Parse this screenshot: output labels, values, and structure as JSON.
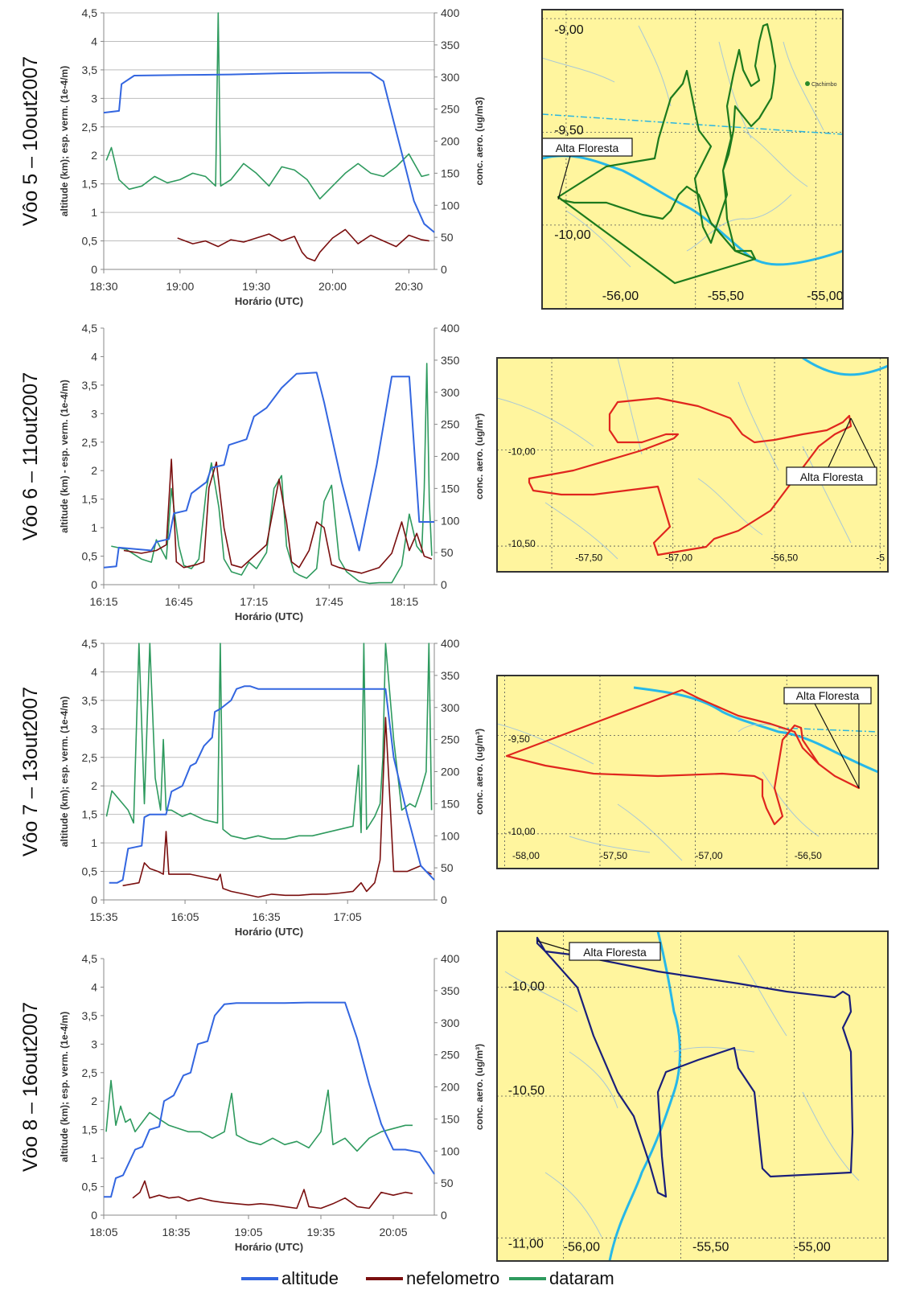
{
  "legend": {
    "items": [
      {
        "label": "altitude",
        "color": "#3366e0"
      },
      {
        "label": "nefelometro",
        "color": "#7a0f0f"
      },
      {
        "label": "dataram",
        "color": "#2e9a5e"
      }
    ]
  },
  "colors": {
    "altitude": "#3366e0",
    "nefelometro": "#7a0f0f",
    "dataram": "#2e9a5e",
    "map_bg": "#fff59e",
    "river": "#27b8e8"
  },
  "chart_data": [
    {
      "type": "line",
      "flight": "Vôo 5 – 10out2007",
      "xlabel": "Horário (UTC)",
      "ylabel_left": "altitude (km); esp. verm. (1e-4/m)",
      "ylabel_right": "conc. aero. (ug/m3)",
      "x_ticks": [
        "18:30",
        "19:00",
        "19:30",
        "20:00",
        "20:30"
      ],
      "x_range_min": [
        1110,
        1240
      ],
      "ylim_left": [
        0,
        4.5
      ],
      "ylim_right": [
        0,
        400
      ],
      "y_ticks_left": [
        "0",
        "0,5",
        "1",
        "1,5",
        "2",
        "2,5",
        "3",
        "3,5",
        "4",
        "4,5"
      ],
      "y_ticks_right": [
        "0",
        "50",
        "100",
        "150",
        "200",
        "250",
        "300",
        "350",
        "400"
      ],
      "grid": true,
      "series": [
        {
          "name": "altitude",
          "axis": "left",
          "x": [
            1110,
            1116,
            1117,
            1122,
            1140,
            1160,
            1180,
            1200,
            1215,
            1220,
            1224,
            1228,
            1232,
            1236,
            1240
          ],
          "y": [
            2.75,
            2.78,
            3.25,
            3.4,
            3.41,
            3.42,
            3.44,
            3.45,
            3.45,
            3.3,
            2.6,
            1.9,
            1.2,
            0.8,
            0.65
          ]
        },
        {
          "name": "nefelometro",
          "axis": "left",
          "x": [
            1139,
            1145,
            1150,
            1155,
            1160,
            1165,
            1170,
            1175,
            1180,
            1185,
            1188,
            1190,
            1193,
            1195,
            1200,
            1205,
            1210,
            1215,
            1220,
            1225,
            1230,
            1235,
            1238
          ],
          "y": [
            0.55,
            0.45,
            0.5,
            0.4,
            0.52,
            0.48,
            0.55,
            0.62,
            0.5,
            0.58,
            0.3,
            0.2,
            0.15,
            0.3,
            0.55,
            0.7,
            0.45,
            0.6,
            0.5,
            0.4,
            0.6,
            0.52,
            0.5
          ]
        },
        {
          "name": "dataram",
          "axis": "right",
          "x": [
            1111,
            1113,
            1116,
            1120,
            1125,
            1130,
            1135,
            1140,
            1145,
            1150,
            1154,
            1155,
            1156,
            1160,
            1165,
            1170,
            1175,
            1180,
            1185,
            1190,
            1195,
            1200,
            1205,
            1210,
            1215,
            1220,
            1225,
            1230,
            1235,
            1238
          ],
          "y": [
            170,
            190,
            140,
            125,
            130,
            145,
            135,
            140,
            150,
            145,
            130,
            400,
            130,
            140,
            165,
            150,
            130,
            160,
            155,
            140,
            110,
            130,
            150,
            165,
            150,
            145,
            160,
            180,
            145,
            148
          ]
        }
      ]
    },
    {
      "type": "line",
      "flight": "Vôo 6 – 11out2007",
      "xlabel": "Horário (UTC)",
      "ylabel_left": "altitude (km) - esp. verm. (1e-4/m)",
      "ylabel_right": "conc. aero. (ug/m³)",
      "x_ticks": [
        "16:15",
        "16:45",
        "17:15",
        "17:45",
        "18:15"
      ],
      "x_range_min": [
        975,
        1107
      ],
      "ylim_left": [
        0,
        4.5
      ],
      "ylim_right": [
        0,
        400
      ],
      "y_ticks_left": [
        "0",
        "0,5",
        "1",
        "1,5",
        "2",
        "2,5",
        "3",
        "3,5",
        "4",
        "4,5"
      ],
      "y_ticks_right": [
        "0",
        "50",
        "100",
        "150",
        "200",
        "250",
        "300",
        "350",
        "400"
      ],
      "grid": false,
      "series": [
        {
          "name": "altitude",
          "axis": "left",
          "x": [
            975,
            980,
            981,
            994,
            996,
            1001,
            1003,
            1008,
            1010,
            1016,
            1018,
            1023,
            1025,
            1032,
            1035,
            1040,
            1046,
            1052,
            1060,
            1063,
            1070,
            1077,
            1084,
            1090,
            1097,
            1101,
            1107
          ],
          "y": [
            0.3,
            0.32,
            0.65,
            0.6,
            0.75,
            0.8,
            1.25,
            1.3,
            1.6,
            1.8,
            2.05,
            2.1,
            2.45,
            2.55,
            2.95,
            3.1,
            3.45,
            3.7,
            3.72,
            3.2,
            1.8,
            0.6,
            2.1,
            3.65,
            3.65,
            1.1,
            1.1
          ]
        },
        {
          "name": "nefelometro",
          "axis": "left",
          "x": [
            983,
            990,
            996,
            1000,
            1002,
            1004,
            1007,
            1012,
            1015,
            1017,
            1020,
            1023,
            1026,
            1030,
            1035,
            1040,
            1045,
            1048,
            1050,
            1053,
            1057,
            1060,
            1063,
            1066,
            1069,
            1073,
            1078,
            1085,
            1090,
            1094,
            1097,
            1100,
            1103,
            1106
          ],
          "y": [
            0.6,
            0.55,
            0.6,
            0.7,
            2.2,
            0.4,
            0.3,
            0.35,
            0.4,
            1.7,
            2.15,
            1.0,
            0.35,
            0.3,
            0.5,
            0.7,
            1.85,
            1.1,
            0.4,
            0.3,
            0.6,
            1.1,
            1.0,
            0.35,
            0.3,
            0.25,
            0.2,
            0.3,
            0.55,
            1.1,
            0.6,
            0.9,
            0.5,
            0.45
          ]
        },
        {
          "name": "dataram",
          "axis": "right",
          "x": [
            978,
            984,
            990,
            994,
            996,
            1000,
            1002,
            1005,
            1007,
            1010,
            1013,
            1016,
            1018,
            1021,
            1023,
            1026,
            1030,
            1033,
            1036,
            1040,
            1043,
            1046,
            1048,
            1051,
            1053,
            1056,
            1060,
            1063,
            1066,
            1069,
            1072,
            1077,
            1081,
            1085,
            1090,
            1094,
            1097,
            1100,
            1102,
            1103,
            1104,
            1105,
            1106
          ],
          "y": [
            60,
            55,
            40,
            35,
            70,
            40,
            150,
            60,
            30,
            25,
            40,
            150,
            190,
            120,
            40,
            20,
            15,
            35,
            25,
            50,
            150,
            170,
            60,
            20,
            15,
            10,
            25,
            130,
            155,
            40,
            20,
            5,
            2,
            3,
            3,
            30,
            110,
            60,
            50,
            150,
            345,
            130,
            45
          ]
        }
      ]
    },
    {
      "type": "line",
      "flight": "Vôo 7 – 13out2007",
      "xlabel": "Horário (UTC)",
      "ylabel_left": "altitude (km); esp. verm. (1e-4/m)",
      "ylabel_right": "conc. aero. (ug/m³)",
      "x_ticks": [
        "15:35",
        "16:05",
        "16:35",
        "17:05"
      ],
      "x_range_min": [
        933,
        1055
      ],
      "ylim_left": [
        0,
        4.5
      ],
      "ylim_right": [
        0,
        400
      ],
      "y_ticks_left": [
        "0",
        "0,5",
        "1",
        "1,5",
        "2",
        "2,5",
        "3",
        "3,5",
        "4",
        "4,5"
      ],
      "y_ticks_right": [
        "0",
        "50",
        "100",
        "150",
        "200",
        "250",
        "300",
        "350",
        "400"
      ],
      "grid": true,
      "series": [
        {
          "name": "altitude",
          "axis": "left",
          "x": [
            935,
            938,
            940,
            942,
            947,
            948,
            950,
            956,
            958,
            962,
            965,
            967,
            970,
            973,
            974,
            976,
            980,
            982,
            985,
            987,
            990,
            994,
            1000,
            1010,
            1020,
            1030,
            1037,
            1040,
            1045,
            1050,
            1055
          ],
          "y": [
            0.3,
            0.3,
            0.35,
            0.9,
            0.95,
            1.45,
            1.5,
            1.5,
            1.9,
            2.0,
            2.35,
            2.4,
            2.7,
            2.85,
            3.3,
            3.35,
            3.5,
            3.7,
            3.75,
            3.75,
            3.7,
            3.7,
            3.7,
            3.7,
            3.7,
            3.7,
            3.7,
            2.5,
            1.5,
            0.6,
            0.35
          ]
        },
        {
          "name": "nefelometro",
          "axis": "left",
          "x": [
            940,
            946,
            948,
            950,
            953,
            955,
            956,
            957,
            960,
            965,
            970,
            975,
            976,
            977,
            980,
            985,
            990,
            995,
            1000,
            1005,
            1010,
            1015,
            1020,
            1025,
            1028,
            1030,
            1033,
            1035,
            1037,
            1040,
            1043,
            1045,
            1050,
            1052,
            1054
          ],
          "y": [
            0.25,
            0.3,
            0.65,
            0.55,
            0.5,
            0.45,
            1.2,
            0.45,
            0.45,
            0.45,
            0.4,
            0.35,
            0.45,
            0.2,
            0.15,
            0.1,
            0.05,
            0.1,
            0.08,
            0.08,
            0.1,
            0.1,
            0.12,
            0.15,
            0.3,
            0.15,
            0.3,
            0.7,
            3.2,
            0.5,
            0.5,
            0.5,
            0.6,
            0.5,
            0.45
          ]
        },
        {
          "name": "dataram",
          "axis": "right",
          "x": [
            934,
            936,
            940,
            942,
            944,
            946,
            948,
            950,
            952,
            954,
            955,
            956,
            958,
            960,
            962,
            965,
            970,
            975,
            976,
            977,
            980,
            985,
            990,
            995,
            1000,
            1005,
            1010,
            1015,
            1020,
            1025,
            1027,
            1028,
            1029,
            1030,
            1033,
            1035,
            1036,
            1037,
            1040,
            1043,
            1046,
            1048,
            1050,
            1052,
            1053,
            1054
          ],
          "y": [
            130,
            170,
            150,
            140,
            120,
            400,
            150,
            400,
            190,
            140,
            250,
            140,
            140,
            135,
            130,
            135,
            125,
            120,
            400,
            110,
            100,
            95,
            100,
            95,
            95,
            100,
            100,
            105,
            110,
            115,
            210,
            105,
            400,
            110,
            130,
            150,
            220,
            400,
            250,
            140,
            150,
            145,
            170,
            200,
            400,
            140
          ]
        }
      ]
    },
    {
      "type": "line",
      "flight": "Vôo 8 – 16out2007",
      "xlabel": "Horário (UTC)",
      "ylabel_left": "altitude (km); esp. verm. (1e-4/m)",
      "ylabel_right": "conc. aero. (ug/m³)",
      "x_ticks": [
        "18:05",
        "18:35",
        "19:05",
        "19:35",
        "20:05"
      ],
      "x_range_min": [
        1085,
        1222
      ],
      "ylim_left": [
        0,
        4.5
      ],
      "ylim_right": [
        0,
        400
      ],
      "y_ticks_left": [
        "0",
        "0,5",
        "1",
        "1,5",
        "2",
        "2,5",
        "3",
        "3,5",
        "4",
        "4,5"
      ],
      "y_ticks_right": [
        "0",
        "50",
        "100",
        "150",
        "200",
        "250",
        "300",
        "350",
        "400"
      ],
      "grid": false,
      "series": [
        {
          "name": "altitude",
          "axis": "left",
          "x": [
            1085,
            1088,
            1090,
            1093,
            1098,
            1101,
            1104,
            1108,
            1110,
            1114,
            1118,
            1121,
            1124,
            1128,
            1131,
            1135,
            1140,
            1150,
            1160,
            1170,
            1180,
            1185,
            1190,
            1195,
            1200,
            1205,
            1210,
            1216,
            1220,
            1222
          ],
          "y": [
            0.32,
            0.32,
            0.65,
            0.7,
            1.15,
            1.2,
            1.5,
            1.55,
            2.0,
            2.1,
            2.45,
            2.5,
            3.0,
            3.05,
            3.5,
            3.7,
            3.72,
            3.72,
            3.72,
            3.73,
            3.73,
            3.73,
            3.1,
            2.3,
            1.6,
            1.15,
            1.15,
            1.1,
            0.85,
            0.72
          ]
        },
        {
          "name": "nefelometro",
          "axis": "left",
          "x": [
            1097,
            1100,
            1102,
            1104,
            1108,
            1112,
            1116,
            1120,
            1125,
            1130,
            1135,
            1140,
            1145,
            1150,
            1155,
            1160,
            1165,
            1168,
            1170,
            1175,
            1180,
            1185,
            1190,
            1195,
            1200,
            1205,
            1210,
            1213
          ],
          "y": [
            0.3,
            0.4,
            0.6,
            0.3,
            0.35,
            0.3,
            0.32,
            0.25,
            0.3,
            0.25,
            0.22,
            0.2,
            0.18,
            0.2,
            0.18,
            0.15,
            0.12,
            0.45,
            0.15,
            0.12,
            0.2,
            0.3,
            0.15,
            0.12,
            0.4,
            0.35,
            0.4,
            0.38
          ]
        },
        {
          "name": "dataram",
          "axis": "right",
          "x": [
            1086,
            1088,
            1090,
            1092,
            1094,
            1096,
            1098,
            1100,
            1104,
            1108,
            1112,
            1116,
            1120,
            1125,
            1130,
            1135,
            1138,
            1140,
            1145,
            1150,
            1155,
            1160,
            1165,
            1170,
            1175,
            1178,
            1180,
            1185,
            1190,
            1195,
            1200,
            1205,
            1210,
            1213
          ],
          "y": [
            130,
            210,
            140,
            170,
            145,
            150,
            130,
            140,
            160,
            150,
            140,
            135,
            130,
            130,
            120,
            130,
            190,
            125,
            115,
            110,
            120,
            110,
            115,
            105,
            130,
            195,
            110,
            120,
            100,
            120,
            130,
            135,
            140,
            140
          ]
        }
      ]
    }
  ],
  "maps": [
    {
      "flight": "Vôo 5",
      "route_color": "#1d7a1d",
      "lat_labels": [
        "-9,00",
        "-9,50",
        "-10,00"
      ],
      "lon_labels": [
        "-56,00",
        "-55,50",
        "-55,00"
      ],
      "callout": "Alta Floresta",
      "place_marks": [
        "Cachimbo"
      ]
    },
    {
      "flight": "Vôo 6",
      "route_color": "#e0261e",
      "lat_labels": [
        "-10,00",
        "-10,50"
      ],
      "lon_labels": [
        "-57,50",
        "-57,00",
        "-56,50",
        "-5"
      ],
      "callout": "Alta Floresta",
      "place_marks": []
    },
    {
      "flight": "Vôo 7",
      "route_color": "#e0261e",
      "lat_labels": [
        "-9,50",
        "-10,00"
      ],
      "lon_labels": [
        "-58,00",
        "-57,50",
        "-57,00",
        "-56,50"
      ],
      "callout": "Alta Floresta",
      "place_marks": []
    },
    {
      "flight": "Vôo 8",
      "route_color": "#1a1f7a",
      "lat_labels": [
        "-10,00",
        "-10,50",
        "-11,00"
      ],
      "lon_labels": [
        "-56,00",
        "-55,50",
        "-55,00"
      ],
      "callout": "Alta Floresta",
      "place_marks": []
    }
  ]
}
